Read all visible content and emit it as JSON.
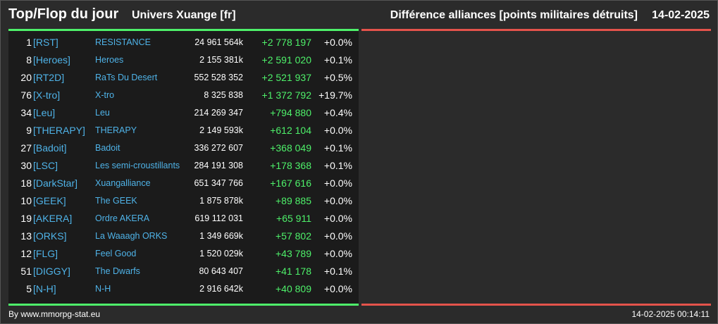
{
  "header": {
    "title": "Top/Flop du jour",
    "universe": "Univers Xuange [fr]",
    "subtitle": "Différence alliances [points militaires détruits]",
    "date": "14-02-2025"
  },
  "colors": {
    "accent_green": "#4ef16a",
    "accent_red": "#e4534b",
    "link_blue": "#4fb3e8"
  },
  "rows": [
    {
      "rank": "1",
      "tag": "[RST]",
      "name": "RESISTANCE",
      "points": "24 961 564k",
      "diff": "+2 778 197",
      "pct": "+0.0%"
    },
    {
      "rank": "8",
      "tag": "[Heroes]",
      "name": "Heroes",
      "points": "2 155 381k",
      "diff": "+2 591 020",
      "pct": "+0.1%"
    },
    {
      "rank": "20",
      "tag": "[RT2D]",
      "name": "RaTs Du Desert",
      "points": "552 528 352",
      "diff": "+2 521 937",
      "pct": "+0.5%"
    },
    {
      "rank": "76",
      "tag": "[X-tro]",
      "name": "X-tro",
      "points": "8 325 838",
      "diff": "+1 372 792",
      "pct": "+19.7%"
    },
    {
      "rank": "34",
      "tag": "[Leu]",
      "name": "Leu",
      "points": "214 269 347",
      "diff": "+794 880",
      "pct": "+0.4%"
    },
    {
      "rank": "9",
      "tag": "[THERAPY]",
      "name": "THERAPY",
      "points": "2 149 593k",
      "diff": "+612 104",
      "pct": "+0.0%"
    },
    {
      "rank": "27",
      "tag": "[Badoit]",
      "name": "Badoit",
      "points": "336 272 607",
      "diff": "+368 049",
      "pct": "+0.1%"
    },
    {
      "rank": "30",
      "tag": "[LSC]",
      "name": "Les semi-croustillants",
      "points": "284 191 308",
      "diff": "+178 368",
      "pct": "+0.1%"
    },
    {
      "rank": "18",
      "tag": "[DarkStar]",
      "name": "Xuangalliance",
      "points": "651 347 766",
      "diff": "+167 616",
      "pct": "+0.0%"
    },
    {
      "rank": "10",
      "tag": "[GEEK]",
      "name": "The GEEK",
      "points": "1 875 878k",
      "diff": "+89 885",
      "pct": "+0.0%"
    },
    {
      "rank": "19",
      "tag": "[AKERA]",
      "name": "Ordre AKERA",
      "points": "619 112 031",
      "diff": "+65 911",
      "pct": "+0.0%"
    },
    {
      "rank": "13",
      "tag": "[ORKS]",
      "name": "La Waaagh ORKS",
      "points": "1 349 669k",
      "diff": "+57 802",
      "pct": "+0.0%"
    },
    {
      "rank": "12",
      "tag": "[FLG]",
      "name": "Feel Good",
      "points": "1 520 029k",
      "diff": "+43 789",
      "pct": "+0.0%"
    },
    {
      "rank": "51",
      "tag": "[DIGGY]",
      "name": "The Dwarfs",
      "points": "80 643 407",
      "diff": "+41 178",
      "pct": "+0.1%"
    },
    {
      "rank": "5",
      "tag": "[N-H]",
      "name": "N-H",
      "points": "2 916 642k",
      "diff": "+40 809",
      "pct": "+0.0%"
    }
  ],
  "footer": {
    "credit": "By www.mmorpg-stat.eu",
    "timestamp": "14-02-2025 00:14:11"
  }
}
